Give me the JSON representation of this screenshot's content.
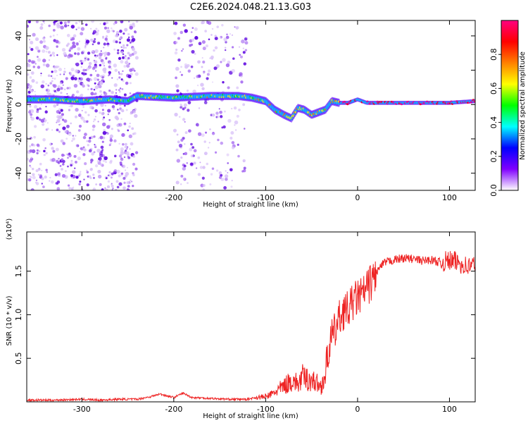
{
  "figure_title": "C2E6.2024.048.21.13.G03",
  "chart_data": [
    {
      "type": "heatmap",
      "xlabel": "Height of straight line (km)",
      "ylabel": "Frequency (Hz)",
      "xlim": [
        -360,
        128
      ],
      "ylim": [
        -50,
        49
      ],
      "x_ticks": [
        -300,
        -200,
        -100,
        0,
        100
      ],
      "y_ticks": [
        -40,
        -20,
        0,
        20,
        40
      ],
      "colorbar": {
        "label": "Normalized spectral amplitude",
        "range": [
          0,
          1
        ],
        "ticks": [
          0.0,
          0.2,
          0.4,
          0.6,
          0.8
        ],
        "tick_labels": [
          "0.0",
          "0.2",
          "0.4",
          "0.6",
          "0.8"
        ],
        "colormap": [
          "#ffffff",
          "#8000ff",
          "#0000ff",
          "#00ffff",
          "#00ff00",
          "#ffff00",
          "#ff8000",
          "#ff0000",
          "#ff0080"
        ]
      },
      "ridge_frequency": {
        "x": [
          -360,
          -330,
          -300,
          -270,
          -250,
          -240,
          -200,
          -160,
          -130,
          -115,
          -100,
          -90,
          -80,
          -72,
          -65,
          -58,
          -50,
          -45,
          -35,
          -28,
          -20,
          -10,
          0,
          10,
          40,
          80,
          100,
          128
        ],
        "y": [
          3,
          3,
          2,
          3,
          2,
          5,
          4,
          5,
          5,
          4,
          2,
          -3,
          -6,
          -8,
          -2,
          -3,
          -6,
          -5,
          -3,
          2,
          1,
          1,
          3,
          1,
          1,
          1,
          1,
          2
        ]
      },
      "noise_band_x": [
        [
          -360,
          -240
        ],
        [
          -200,
          -120
        ]
      ]
    },
    {
      "type": "line",
      "xlabel": "Height of straight line (km)",
      "ylabel": "SNR (10 * v/v)",
      "y_multiplier": "(x10⁴)",
      "xlim": [
        -360,
        128
      ],
      "ylim": [
        0,
        1.95
      ],
      "x_ticks": [
        -300,
        -200,
        -100,
        0,
        100
      ],
      "y_ticks": [
        0.5,
        1.0,
        1.5
      ],
      "y_tick_labels": [
        "0.5",
        "1.0",
        "1.5"
      ],
      "series": [
        {
          "color": "#ee2222",
          "x": [
            -360,
            -330,
            -300,
            -280,
            -260,
            -240,
            -225,
            -215,
            -200,
            -190,
            -180,
            -160,
            -140,
            -120,
            -110,
            -100,
            -95,
            -90,
            -85,
            -80,
            -75,
            -70,
            -65,
            -60,
            -55,
            -50,
            -45,
            -40,
            -35,
            -30,
            -25,
            -20,
            -15,
            -10,
            -5,
            0,
            5,
            10,
            15,
            20,
            25,
            30,
            40,
            50,
            60,
            70,
            80,
            90,
            100,
            110,
            120,
            128
          ],
          "y": [
            0.02,
            0.02,
            0.03,
            0.02,
            0.03,
            0.03,
            0.06,
            0.09,
            0.05,
            0.1,
            0.05,
            0.04,
            0.03,
            0.03,
            0.05,
            0.06,
            0.08,
            0.11,
            0.15,
            0.18,
            0.22,
            0.25,
            0.2,
            0.28,
            0.26,
            0.25,
            0.22,
            0.17,
            0.32,
            0.7,
            0.8,
            0.95,
            1.05,
            1.05,
            1.15,
            1.2,
            1.22,
            1.3,
            1.38,
            1.48,
            1.55,
            1.6,
            1.63,
            1.65,
            1.64,
            1.62,
            1.63,
            1.6,
            1.62,
            1.6,
            1.55,
            1.58
          ]
        }
      ]
    }
  ]
}
